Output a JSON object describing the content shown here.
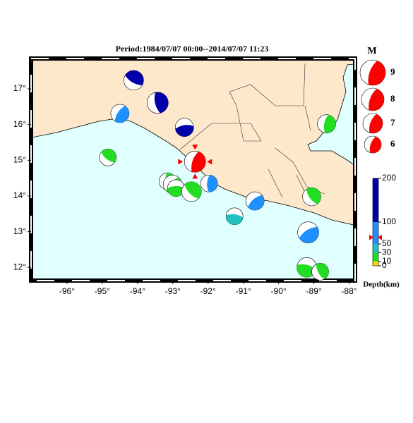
{
  "title": "Period:1984/07/07 00:00--2014/07/07 11:23",
  "map": {
    "lonlim": [
      -97,
      -87.85
    ],
    "latlim": [
      11.65,
      17.83
    ],
    "lonticks": [
      {
        "value": -96,
        "label": "-96°"
      },
      {
        "value": -95,
        "label": "-95°"
      },
      {
        "value": -94,
        "label": "-94°"
      },
      {
        "value": -93,
        "label": "-93°"
      },
      {
        "value": -92,
        "label": "-92°"
      },
      {
        "value": -91,
        "label": "-91°"
      },
      {
        "value": -90,
        "label": "-90°"
      },
      {
        "value": -89,
        "label": "-89°"
      },
      {
        "value": -88,
        "label": "-88°"
      }
    ],
    "latticks": [
      {
        "value": 12,
        "label": "12°"
      },
      {
        "value": 13,
        "label": "13°"
      },
      {
        "value": 14,
        "label": "14°"
      },
      {
        "value": 15,
        "label": "15°"
      },
      {
        "value": 16,
        "label": "16°"
      },
      {
        "value": 17,
        "label": "17°"
      }
    ],
    "events": [
      {
        "lon": -94.11,
        "lat": 17.24,
        "mag": 7,
        "color": "#0000aa"
      },
      {
        "lon": -93.43,
        "lat": 16.61,
        "mag": 7.5,
        "color": "#0000aa"
      },
      {
        "lon": -94.5,
        "lat": 16.31,
        "mag": 6.5,
        "color": "#1e90ff"
      },
      {
        "lon": -92.67,
        "lat": 15.92,
        "mag": 6.5,
        "color": "#0000aa"
      },
      {
        "lon": -94.84,
        "lat": 15.08,
        "mag": 6,
        "color": "#22dd22"
      },
      {
        "lon": -93.15,
        "lat": 14.41,
        "mag": 6,
        "color": "#22dd22"
      },
      {
        "lon": -93.01,
        "lat": 14.33,
        "mag": 6.5,
        "color": "#22dd22"
      },
      {
        "lon": -92.91,
        "lat": 14.22,
        "mag": 6,
        "color": "#22dd22"
      },
      {
        "lon": -92.47,
        "lat": 14.12,
        "mag": 7,
        "color": "#22dd22"
      },
      {
        "lon": -91.97,
        "lat": 14.35,
        "mag": 6,
        "color": "#1e90ff"
      },
      {
        "lon": -90.67,
        "lat": 13.86,
        "mag": 6.5,
        "color": "#1e90ff"
      },
      {
        "lon": -91.25,
        "lat": 13.43,
        "mag": 6,
        "color": "#20c0c0"
      },
      {
        "lon": -89.06,
        "lat": 13.98,
        "mag": 6.5,
        "color": "#22dd22"
      },
      {
        "lon": -88.64,
        "lat": 16.02,
        "mag": 6.5,
        "color": "#22dd22"
      },
      {
        "lon": -89.16,
        "lat": 12.98,
        "mag": 7.5,
        "color": "#1e90ff"
      },
      {
        "lon": -89.2,
        "lat": 12.0,
        "mag": 7,
        "color": "#22dd22"
      },
      {
        "lon": -88.82,
        "lat": 11.88,
        "mag": 6,
        "color": "#22dd22"
      },
      {
        "lon": -92.37,
        "lat": 14.96,
        "mag": 7.5,
        "color": "#ff0000"
      }
    ]
  },
  "magnitude_legend": {
    "title": "M",
    "sizes": [
      9,
      8,
      7,
      6
    ],
    "color": "#ff0000"
  },
  "depth_scale": {
    "label": "Depth(km)",
    "ticks": [
      200,
      100,
      50,
      30,
      10,
      0
    ],
    "lim": [
      0,
      200
    ],
    "marker": 65,
    "bands": [
      {
        "from": 100,
        "to": 200,
        "color": "#0000aa"
      },
      {
        "from": 50,
        "to": 100,
        "color": "#1e90ff"
      },
      {
        "from": 30,
        "to": 50,
        "color": "#20c0c0"
      },
      {
        "from": 10,
        "to": 30,
        "color": "#22dd22"
      },
      {
        "from": 0,
        "to": 10,
        "color": "#ffd700"
      }
    ]
  }
}
